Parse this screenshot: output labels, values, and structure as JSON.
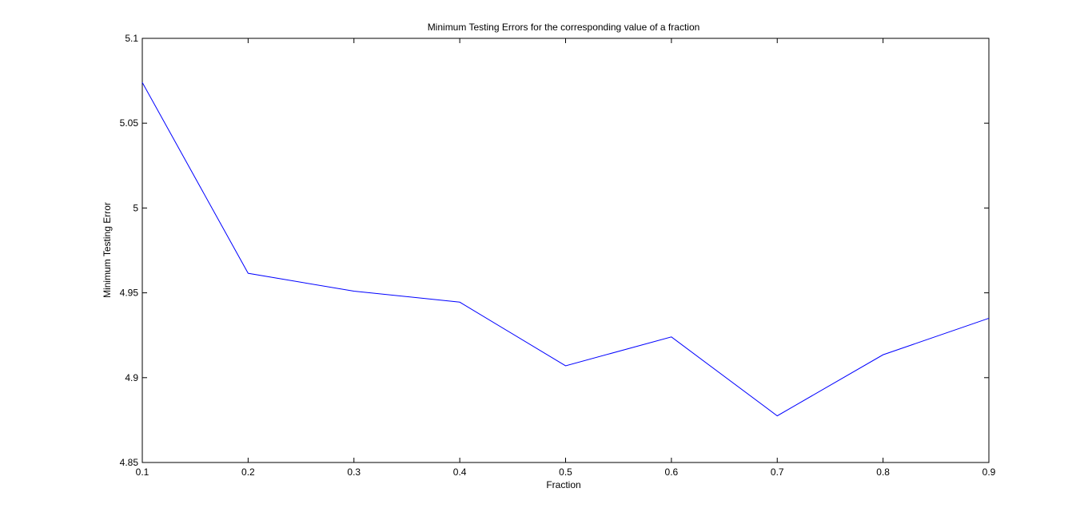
{
  "chart_data": {
    "type": "line",
    "title": "Minimum Testing Errors for the corresponding value of a fraction",
    "xlabel": "Fraction",
    "ylabel": "Minimum Testing Error",
    "xlim": [
      0.1,
      0.9
    ],
    "ylim": [
      4.85,
      5.1
    ],
    "xticks": [
      0.1,
      0.2,
      0.3,
      0.4,
      0.5,
      0.6,
      0.7,
      0.8,
      0.9
    ],
    "xtick_labels": [
      "0.1",
      "0.2",
      "0.3",
      "0.4",
      "0.5",
      "0.6",
      "0.7",
      "0.8",
      "0.9"
    ],
    "yticks": [
      4.85,
      4.9,
      4.95,
      5.0,
      5.05,
      5.1
    ],
    "ytick_labels": [
      "4.85",
      "4.9",
      "4.95",
      "5",
      "5.05",
      "5.1"
    ],
    "grid": false,
    "box": true,
    "series": [
      {
        "color": "#0000ff",
        "x": [
          0.1,
          0.2,
          0.3,
          0.4,
          0.5,
          0.6,
          0.7,
          0.8,
          0.9
        ],
        "y": [
          5.074,
          4.9615,
          4.951,
          4.9445,
          4.907,
          4.924,
          4.8775,
          4.9135,
          4.935
        ]
      }
    ]
  }
}
